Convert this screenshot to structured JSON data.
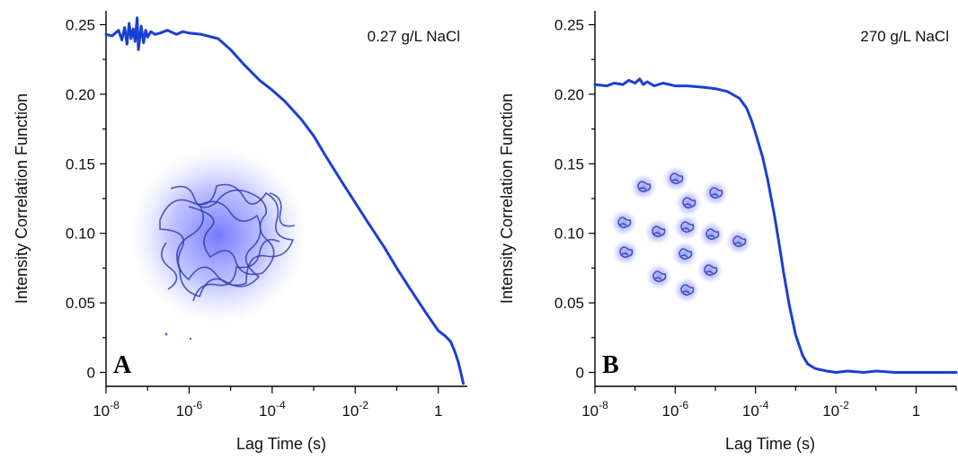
{
  "colors": {
    "curve": "#1a3fd4",
    "glow": "#6b72ff",
    "coil": "#2f3db0"
  },
  "icons": [
    "polymer-coil-illustration",
    "polymer-globules-illustration"
  ],
  "chart_data": [
    {
      "type": "line",
      "panel_label": "A",
      "annotation": "0.27 g/L NaCl",
      "xlabel": "Lag Time (s)",
      "ylabel": "Intensity Correlation Function",
      "x_scale": "log",
      "xlim": [
        1e-08,
        5
      ],
      "ylim": [
        -0.01,
        0.26
      ],
      "x_ticks": [
        {
          "value": 1e-08,
          "base": "10",
          "exp": "-8"
        },
        {
          "value": 1e-06,
          "base": "10",
          "exp": "-6"
        },
        {
          "value": 0.0001,
          "base": "10",
          "exp": "-4"
        },
        {
          "value": 0.01,
          "base": "10",
          "exp": "-2"
        },
        {
          "value": 1,
          "base": "1",
          "exp": ""
        }
      ],
      "y_ticks": [
        {
          "value": 0,
          "label": "0"
        },
        {
          "value": 0.05,
          "label": "0.05"
        },
        {
          "value": 0.1,
          "label": "0.10"
        },
        {
          "value": 0.15,
          "label": "0.15"
        },
        {
          "value": 0.2,
          "label": "0.20"
        },
        {
          "value": 0.25,
          "label": "0.25"
        }
      ],
      "series": [
        {
          "x": [
            1e-08,
            1.4e-08,
            2e-08,
            2.4e-08,
            2.8e-08,
            3.2e-08,
            3.6e-08,
            4e-08,
            4.5e-08,
            5e-08,
            5.6e-08,
            6e-08,
            7e-08,
            8e-08,
            9e-08,
            1e-07,
            1.2e-07,
            1.5e-07,
            2e-07,
            3e-07,
            5e-07,
            7e-07,
            1e-06,
            2e-06,
            5e-06,
            1e-05,
            2e-05,
            5e-05,
            0.0001,
            0.0002,
            0.0005,
            0.001,
            0.002,
            0.005,
            0.01,
            0.02,
            0.05,
            0.1,
            0.2,
            0.5,
            1,
            1.5,
            2,
            2.5,
            3,
            3.5,
            4
          ],
          "y": [
            0.243,
            0.242,
            0.246,
            0.239,
            0.248,
            0.236,
            0.251,
            0.24,
            0.247,
            0.238,
            0.255,
            0.232,
            0.249,
            0.237,
            0.246,
            0.241,
            0.245,
            0.243,
            0.244,
            0.246,
            0.243,
            0.245,
            0.244,
            0.243,
            0.24,
            0.232,
            0.222,
            0.21,
            0.203,
            0.195,
            0.182,
            0.17,
            0.155,
            0.136,
            0.122,
            0.108,
            0.09,
            0.075,
            0.061,
            0.043,
            0.03,
            0.026,
            0.022,
            0.015,
            0.008,
            0.0,
            -0.008
          ]
        }
      ]
    },
    {
      "type": "line",
      "panel_label": "B",
      "annotation": "270 g/L NaCl",
      "xlabel": "Lag Time (s)",
      "ylabel": "Intensity Correlation Function",
      "x_scale": "log",
      "xlim": [
        1e-08,
        10
      ],
      "ylim": [
        -0.01,
        0.26
      ],
      "x_ticks": [
        {
          "value": 1e-08,
          "base": "10",
          "exp": "-8"
        },
        {
          "value": 1e-06,
          "base": "10",
          "exp": "-6"
        },
        {
          "value": 0.0001,
          "base": "10",
          "exp": "-4"
        },
        {
          "value": 0.01,
          "base": "10",
          "exp": "-2"
        },
        {
          "value": 1,
          "base": "1",
          "exp": ""
        }
      ],
      "y_ticks": [
        {
          "value": 0,
          "label": "0"
        },
        {
          "value": 0.05,
          "label": "0.05"
        },
        {
          "value": 0.1,
          "label": "0.10"
        },
        {
          "value": 0.15,
          "label": "0.15"
        },
        {
          "value": 0.2,
          "label": "0.20"
        },
        {
          "value": 0.25,
          "label": "0.25"
        }
      ],
      "series": [
        {
          "x": [
            1e-08,
            2e-08,
            3e-08,
            5e-08,
            7e-08,
            1e-07,
            1.3e-07,
            1.6e-07,
            2e-07,
            3e-07,
            5e-07,
            1e-06,
            2e-06,
            5e-06,
            1e-05,
            2e-05,
            4e-05,
            6e-05,
            8e-05,
            0.0001,
            0.00015,
            0.0002,
            0.0003,
            0.0004,
            0.0005,
            0.0007,
            0.001,
            0.0015,
            0.002,
            0.003,
            0.004,
            0.006,
            0.01,
            0.02,
            0.05,
            0.1,
            0.3,
            1,
            3,
            10
          ],
          "y": [
            0.207,
            0.206,
            0.208,
            0.207,
            0.21,
            0.208,
            0.211,
            0.207,
            0.209,
            0.206,
            0.208,
            0.206,
            0.206,
            0.205,
            0.204,
            0.202,
            0.197,
            0.19,
            0.181,
            0.172,
            0.155,
            0.139,
            0.112,
            0.09,
            0.072,
            0.048,
            0.027,
            0.012,
            0.006,
            0.003,
            0.002,
            0.001,
            0.0,
            0.001,
            0.0,
            0.001,
            0.0,
            0.0,
            0.0,
            0.0
          ]
        }
      ]
    }
  ]
}
